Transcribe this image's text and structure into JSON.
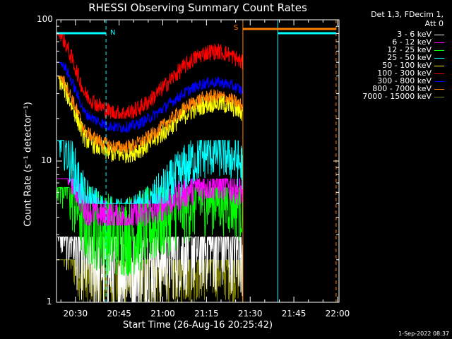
{
  "chart_data": {
    "type": "line",
    "title": "RHESSI Observing Summary Count Rates",
    "xlabel": "Start Time (26-Aug-16 20:25:42)",
    "ylabel": "Count Rate (s⁻¹ detector⁻¹)",
    "yscale": "log",
    "ylim": [
      1,
      100
    ],
    "xlim_minutes": [
      -1.5,
      95.5
    ],
    "x_ticks": [
      {
        "label": "20:30",
        "minute": 5
      },
      {
        "label": "20:45",
        "minute": 20
      },
      {
        "label": "21:00",
        "minute": 35
      },
      {
        "label": "21:15",
        "minute": 50
      },
      {
        "label": "21:30",
        "minute": 65
      },
      {
        "label": "21:45",
        "minute": 80
      },
      {
        "label": "22:00",
        "minute": 95
      }
    ],
    "y_ticks": [
      {
        "label": "1",
        "value": 1
      },
      {
        "label": "10",
        "value": 10
      },
      {
        "label": "100",
        "value": 100
      }
    ],
    "legend_title": [
      "Det 1,3, FDecim 1,",
      "Att 0"
    ],
    "series": [
      {
        "name": "3 - 6 keV",
        "color": "#ffffff",
        "base": 2.2,
        "amp": 0.08,
        "noise": 0.35,
        "clip_low": 1.0,
        "clip_high": 2.9
      },
      {
        "name": "6 - 12 keV",
        "color": "#ff00ff",
        "base": 5.2,
        "amp": 0.12,
        "noise": 0.12,
        "clip_low": 3.5,
        "clip_high": 7.5
      },
      {
        "name": "12 - 25 keV",
        "color": "#00ff00",
        "base": 4.2,
        "amp": 0.15,
        "noise": 0.3,
        "clip_low": 1.0,
        "clip_high": 6.5
      },
      {
        "name": "25 - 50 keV",
        "color": "#00ffff",
        "base": 6.5,
        "amp": 0.25,
        "noise": 0.18,
        "clip_low": 5.0,
        "clip_high": 14.0
      },
      {
        "name": "50 - 100 keV",
        "color": "#ffff00",
        "base": 17.0,
        "amp": 0.18,
        "noise": 0.07,
        "clip_low": 9.0,
        "clip_high": 40.0
      },
      {
        "name": "100 - 300 keV",
        "color": "#ff0000",
        "base": 36.0,
        "amp": 0.22,
        "noise": 0.06,
        "clip_low": 20.0,
        "clip_high": 80.0
      },
      {
        "name": "300 - 800 keV",
        "color": "#0000ff",
        "base": 25.0,
        "amp": 0.16,
        "noise": 0.04,
        "clip_low": 15.0,
        "clip_high": 50.0
      },
      {
        "name": "800 - 7000 keV",
        "color": "#ff8000",
        "base": 19.0,
        "amp": 0.18,
        "noise": 0.05,
        "clip_low": 10.0,
        "clip_high": 40.0
      },
      {
        "name": "7000 - 15000 keV",
        "color": "#808000",
        "base": 1.6,
        "amp": 0.05,
        "noise": 0.25,
        "clip_low": 1.0,
        "clip_high": 2.0
      }
    ],
    "data_end_minute": 62.5,
    "annotations": [
      {
        "label": "N",
        "type": "night",
        "color": "#00ffff",
        "start_minute": -1.5,
        "end_minute": 15.5,
        "y": 82
      },
      {
        "label": "S",
        "type": "saa",
        "color": "#ff8000",
        "start_minute": 62.5,
        "end_minute": 94.5,
        "y": 86
      },
      {
        "type": "night",
        "color": "#00ffff",
        "start_minute": 74.5,
        "end_minute": 94.5,
        "y": 82
      }
    ],
    "vertical_lines": [
      {
        "minute": 15.5,
        "color": "#00ffff",
        "style": "dashed"
      },
      {
        "minute": 62.5,
        "color": "#ff8000",
        "style": "solid"
      },
      {
        "minute": 74.5,
        "color": "#00ffff",
        "style": "solid"
      },
      {
        "minute": 94.5,
        "color": "#ff8000",
        "style": "dashed"
      }
    ]
  },
  "timestamp": "1-Sep-2022 08:37"
}
